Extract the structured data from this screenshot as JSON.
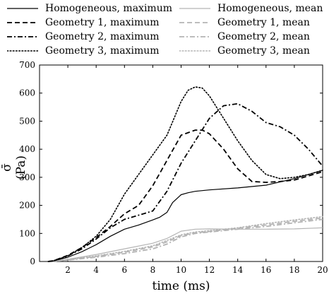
{
  "chart_data": {
    "type": "line",
    "xlabel": "time (ms)",
    "ylabel": "σ̄ (Pa)",
    "xlim": [
      0,
      20
    ],
    "ylim": [
      0,
      700
    ],
    "xticks": [
      2,
      4,
      6,
      8,
      10,
      12,
      14,
      16,
      18,
      20
    ],
    "yticks": [
      0,
      100,
      200,
      300,
      400,
      500,
      600,
      700
    ],
    "grid": false,
    "legend_position": "top",
    "series": [
      {
        "name": "Homogeneous, maximum",
        "color": "#000000",
        "dash": "solid",
        "width": 1.2,
        "x": [
          0.6,
          1.0,
          2.0,
          3.0,
          4.0,
          5.0,
          6.0,
          7.0,
          8.0,
          8.5,
          9.0,
          9.4,
          10.0,
          10.5,
          11.0,
          12.0,
          14.0,
          16.0,
          18.0,
          20.0
        ],
        "y": [
          0,
          2,
          15,
          35,
          60,
          90,
          115,
          130,
          148,
          158,
          175,
          210,
          238,
          245,
          250,
          255,
          262,
          272,
          295,
          325
        ]
      },
      {
        "name": "Geometry 1, maximum",
        "color": "#000000",
        "dash": "dashed",
        "width": 1.8,
        "x": [
          0.6,
          1.0,
          2.0,
          3.0,
          4.0,
          5.0,
          6.0,
          7.0,
          8.0,
          9.0,
          10.0,
          11.0,
          11.5,
          12.0,
          13.0,
          14.0,
          15.0,
          16.0,
          17.0,
          18.0,
          19.0,
          20.0
        ],
        "y": [
          0,
          3,
          22,
          50,
          85,
          125,
          170,
          200,
          270,
          360,
          450,
          468,
          468,
          455,
          400,
          330,
          285,
          282,
          285,
          290,
          305,
          320
        ]
      },
      {
        "name": "Geometry 2, maximum",
        "color": "#000000",
        "dash": "dashdot",
        "width": 1.8,
        "x": [
          0.6,
          1.0,
          2.0,
          3.0,
          4.0,
          5.0,
          6.0,
          7.0,
          8.0,
          9.0,
          10.0,
          11.0,
          12.0,
          13.0,
          14.0,
          15.0,
          16.0,
          17.0,
          18.0,
          19.0,
          20.0
        ],
        "y": [
          0,
          2,
          20,
          45,
          80,
          120,
          150,
          165,
          180,
          250,
          350,
          430,
          510,
          555,
          562,
          535,
          495,
          480,
          450,
          400,
          340
        ]
      },
      {
        "name": "Geometry 3, maximum",
        "color": "#000000",
        "dash": "dotted",
        "width": 1.6,
        "x": [
          0.6,
          1.0,
          2.0,
          3.0,
          4.0,
          5.0,
          6.0,
          7.0,
          8.0,
          9.0,
          10.0,
          10.5,
          11.0,
          11.5,
          12.0,
          13.0,
          14.0,
          15.0,
          16.0,
          17.0,
          18.0,
          19.0,
          20.0
        ],
        "y": [
          0,
          3,
          20,
          50,
          90,
          150,
          240,
          310,
          380,
          450,
          570,
          610,
          622,
          618,
          590,
          510,
          430,
          360,
          310,
          295,
          300,
          310,
          325
        ]
      },
      {
        "name": "Homogeneous, mean",
        "color": "#b4b4b4",
        "dash": "solid",
        "width": 1.2,
        "x": [
          0.6,
          1.0,
          2.0,
          4.0,
          6.0,
          8.0,
          9.0,
          9.5,
          10.0,
          11.0,
          12.0,
          14.0,
          16.0,
          18.0,
          20.0
        ],
        "y": [
          0,
          1,
          8,
          25,
          45,
          65,
          82,
          95,
          108,
          115,
          116,
          115,
          115,
          116,
          120
        ]
      },
      {
        "name": "Geometry 1, mean",
        "color": "#b4b4b4",
        "dash": "dashed",
        "width": 1.8,
        "x": [
          0.6,
          1.0,
          2.0,
          4.0,
          6.0,
          8.0,
          9.0,
          10.0,
          11.0,
          12.0,
          14.0,
          16.0,
          18.0,
          20.0
        ],
        "y": [
          0,
          1,
          6,
          18,
          33,
          52,
          70,
          92,
          102,
          107,
          118,
          130,
          143,
          155
        ]
      },
      {
        "name": "Geometry 2, mean",
        "color": "#b4b4b4",
        "dash": "dashdot",
        "width": 1.8,
        "x": [
          0.6,
          1.0,
          2.0,
          4.0,
          6.0,
          8.0,
          9.0,
          10.0,
          11.0,
          12.0,
          14.0,
          16.0,
          18.0,
          20.0
        ],
        "y": [
          0,
          1,
          5,
          15,
          28,
          45,
          62,
          88,
          100,
          105,
          115,
          125,
          138,
          150
        ]
      },
      {
        "name": "Geometry 3, mean",
        "color": "#b4b4b4",
        "dash": "dotted",
        "width": 1.6,
        "x": [
          0.6,
          1.0,
          2.0,
          4.0,
          6.0,
          8.0,
          9.0,
          10.0,
          11.0,
          12.0,
          14.0,
          16.0,
          18.0,
          20.0
        ],
        "y": [
          0,
          1,
          7,
          20,
          36,
          56,
          75,
          95,
          105,
          110,
          120,
          135,
          148,
          160
        ]
      }
    ]
  }
}
